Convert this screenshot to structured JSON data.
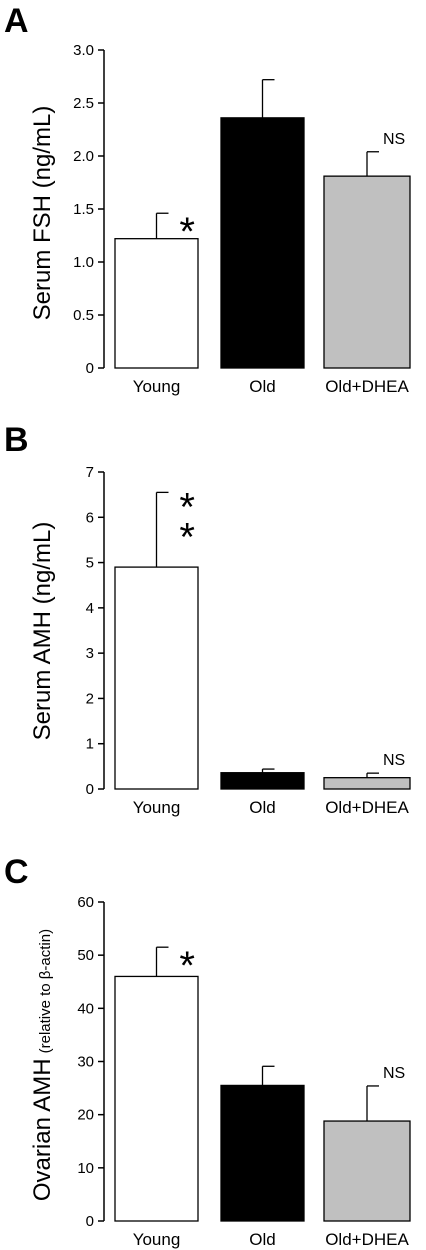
{
  "chart_data": [
    {
      "type": "bar",
      "panel": "A",
      "categories": [
        "Young",
        "Old",
        "Old+DHEA"
      ],
      "values": [
        1.22,
        2.36,
        1.81
      ],
      "errors": [
        0.24,
        0.36,
        0.23
      ],
      "bar_colors": [
        "#ffffff",
        "#000000",
        "#c0c0c0"
      ],
      "annotations": [
        "*",
        "",
        "NS"
      ],
      "ylabel": "Serum FSH (ng/mL)",
      "ylim": [
        0,
        3.0
      ],
      "yticks": [
        "0",
        "0.5",
        "1.0",
        "1.5",
        "2.0",
        "2.5",
        "3.0"
      ],
      "ytick_values": [
        0,
        0.5,
        1.0,
        1.5,
        2.0,
        2.5,
        3.0
      ]
    },
    {
      "type": "bar",
      "panel": "B",
      "categories": [
        "Young",
        "Old",
        "Old+DHEA"
      ],
      "values": [
        4.9,
        0.36,
        0.25
      ],
      "errors": [
        1.65,
        0.08,
        0.1
      ],
      "bar_colors": [
        "#ffffff",
        "#000000",
        "#c0c0c0"
      ],
      "annotations": [
        "**",
        "",
        "NS"
      ],
      "ylabel": "Serum AMH (ng/mL)",
      "ylim": [
        0,
        7
      ],
      "yticks": [
        "0",
        "1",
        "2",
        "3",
        "4",
        "5",
        "6",
        "7"
      ],
      "ytick_values": [
        0,
        1,
        2,
        3,
        4,
        5,
        6,
        7
      ]
    },
    {
      "type": "bar",
      "panel": "C",
      "categories": [
        "Young",
        "Old",
        "Old+DHEA"
      ],
      "values": [
        46,
        25.5,
        18.8
      ],
      "errors": [
        5.5,
        3.6,
        6.6
      ],
      "bar_colors": [
        "#ffffff",
        "#000000",
        "#c0c0c0"
      ],
      "annotations": [
        "*",
        "",
        "NS"
      ],
      "ylabel": "Ovarian AMH",
      "ylabel_sub": "(relative to β-actin)",
      "ylim": [
        0,
        60
      ],
      "yticks": [
        "0",
        "10",
        "20",
        "30",
        "40",
        "50",
        "60"
      ],
      "ytick_values": [
        0,
        10,
        20,
        30,
        40,
        50,
        60
      ]
    }
  ]
}
